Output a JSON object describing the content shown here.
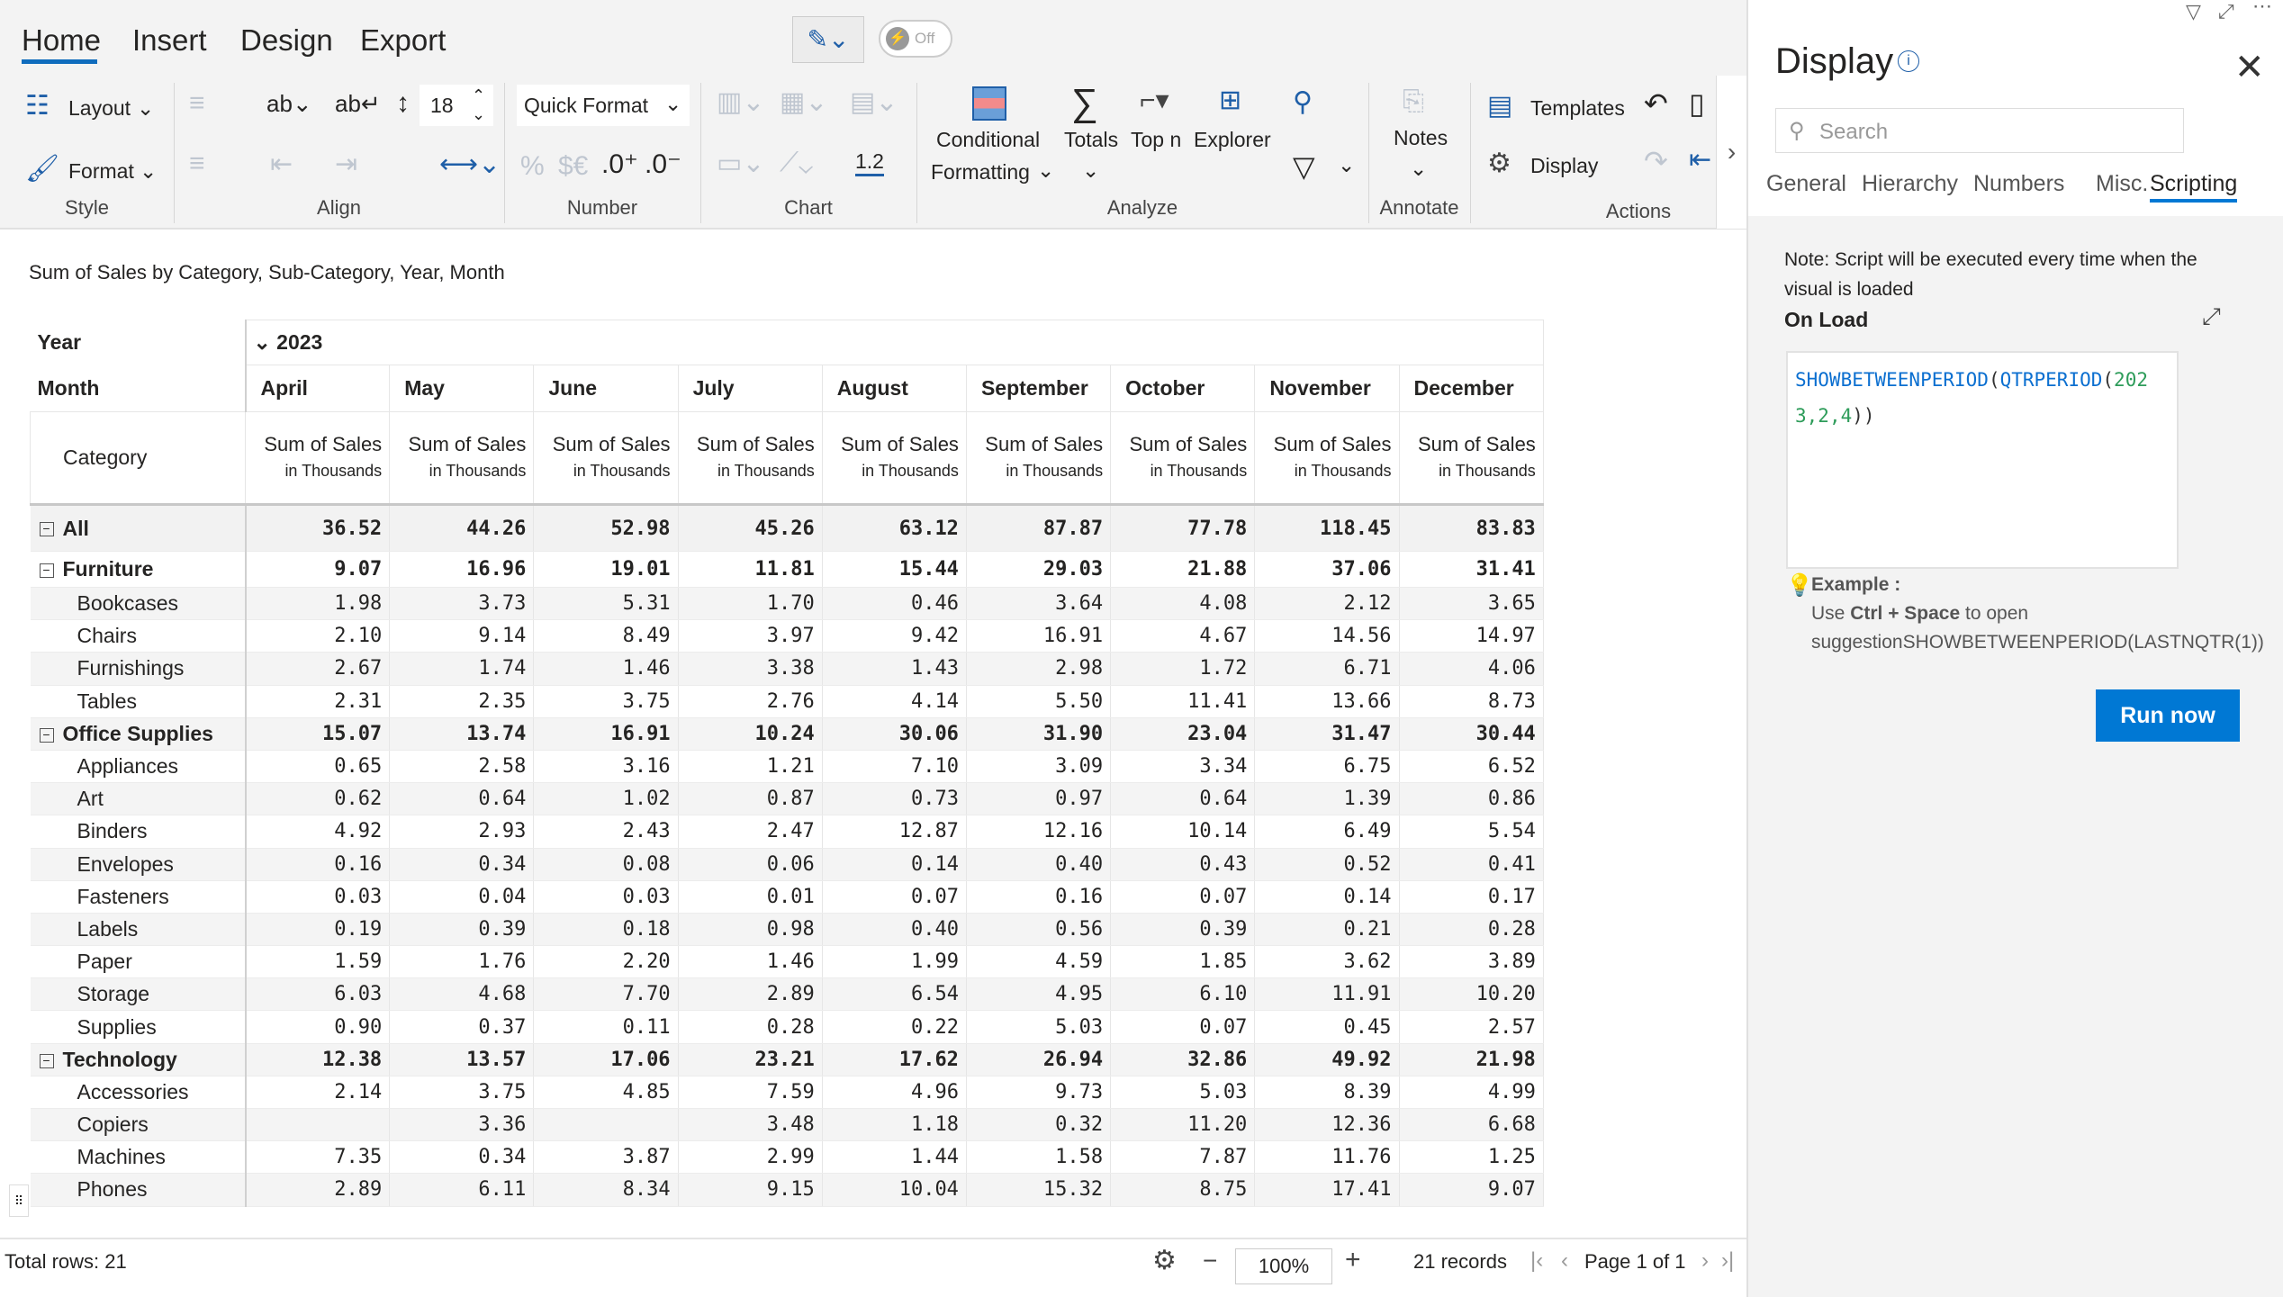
{
  "ribbon": {
    "tabs": [
      "Home",
      "Insert",
      "Design",
      "Export"
    ],
    "active_tab": "Home",
    "toggle_label": "Off",
    "style": {
      "layout": "Layout",
      "format": "Format",
      "label": "Style"
    },
    "align": {
      "font_size": "18",
      "label": "Align"
    },
    "number": {
      "quick_format": "Quick Format",
      "decimal_value": "1.2",
      "label": "Number",
      "percent": "%",
      "currency": "$€"
    },
    "chart": {
      "label": "Chart"
    },
    "analyze": {
      "conditional": "Conditional",
      "formatting": "Formatting",
      "totals": "Totals",
      "topn": "Top n",
      "explorer": "Explorer",
      "label": "Analyze"
    },
    "annotate": {
      "notes": "Notes",
      "label": "Annotate"
    },
    "actions": {
      "templates": "Templates",
      "display": "Display",
      "label": "Actions"
    }
  },
  "view_title": "Sum of Sales by Category, Sub-Category, Year, Month",
  "table": {
    "year_label": "Year",
    "year": "2023",
    "month_label": "Month",
    "category_label": "Category",
    "measure": "Sum of Sales",
    "measure_unit": "in Thousands",
    "months": [
      "April",
      "May",
      "June",
      "July",
      "August",
      "September",
      "October",
      "November",
      "December"
    ],
    "rows": [
      {
        "label": "All",
        "level": 0,
        "values": [
          "36.52",
          "44.26",
          "52.98",
          "45.26",
          "63.12",
          "87.87",
          "77.78",
          "118.45",
          "83.83"
        ]
      },
      {
        "label": "Furniture",
        "level": 1,
        "values": [
          "9.07",
          "16.96",
          "19.01",
          "11.81",
          "15.44",
          "29.03",
          "21.88",
          "37.06",
          "31.41"
        ]
      },
      {
        "label": "Bookcases",
        "level": 2,
        "values": [
          "1.98",
          "3.73",
          "5.31",
          "1.70",
          "0.46",
          "3.64",
          "4.08",
          "2.12",
          "3.65"
        ]
      },
      {
        "label": "Chairs",
        "level": 2,
        "values": [
          "2.10",
          "9.14",
          "8.49",
          "3.97",
          "9.42",
          "16.91",
          "4.67",
          "14.56",
          "14.97"
        ]
      },
      {
        "label": "Furnishings",
        "level": 2,
        "values": [
          "2.67",
          "1.74",
          "1.46",
          "3.38",
          "1.43",
          "2.98",
          "1.72",
          "6.71",
          "4.06"
        ]
      },
      {
        "label": "Tables",
        "level": 2,
        "values": [
          "2.31",
          "2.35",
          "3.75",
          "2.76",
          "4.14",
          "5.50",
          "11.41",
          "13.66",
          "8.73"
        ]
      },
      {
        "label": "Office Supplies",
        "level": 1,
        "values": [
          "15.07",
          "13.74",
          "16.91",
          "10.24",
          "30.06",
          "31.90",
          "23.04",
          "31.47",
          "30.44"
        ]
      },
      {
        "label": "Appliances",
        "level": 2,
        "values": [
          "0.65",
          "2.58",
          "3.16",
          "1.21",
          "7.10",
          "3.09",
          "3.34",
          "6.75",
          "6.52"
        ]
      },
      {
        "label": "Art",
        "level": 2,
        "values": [
          "0.62",
          "0.64",
          "1.02",
          "0.87",
          "0.73",
          "0.97",
          "0.64",
          "1.39",
          "0.86"
        ]
      },
      {
        "label": "Binders",
        "level": 2,
        "values": [
          "4.92",
          "2.93",
          "2.43",
          "2.47",
          "12.87",
          "12.16",
          "10.14",
          "6.49",
          "5.54"
        ]
      },
      {
        "label": "Envelopes",
        "level": 2,
        "values": [
          "0.16",
          "0.34",
          "0.08",
          "0.06",
          "0.14",
          "0.40",
          "0.43",
          "0.52",
          "0.41"
        ]
      },
      {
        "label": "Fasteners",
        "level": 2,
        "values": [
          "0.03",
          "0.04",
          "0.03",
          "0.01",
          "0.07",
          "0.16",
          "0.07",
          "0.14",
          "0.17"
        ]
      },
      {
        "label": "Labels",
        "level": 2,
        "values": [
          "0.19",
          "0.39",
          "0.18",
          "0.98",
          "0.40",
          "0.56",
          "0.39",
          "0.21",
          "0.28"
        ]
      },
      {
        "label": "Paper",
        "level": 2,
        "values": [
          "1.59",
          "1.76",
          "2.20",
          "1.46",
          "1.99",
          "4.59",
          "1.85",
          "3.62",
          "3.89"
        ]
      },
      {
        "label": "Storage",
        "level": 2,
        "values": [
          "6.03",
          "4.68",
          "7.70",
          "2.89",
          "6.54",
          "4.95",
          "6.10",
          "11.91",
          "10.20"
        ]
      },
      {
        "label": "Supplies",
        "level": 2,
        "values": [
          "0.90",
          "0.37",
          "0.11",
          "0.28",
          "0.22",
          "5.03",
          "0.07",
          "0.45",
          "2.57"
        ]
      },
      {
        "label": "Technology",
        "level": 1,
        "values": [
          "12.38",
          "13.57",
          "17.06",
          "23.21",
          "17.62",
          "26.94",
          "32.86",
          "49.92",
          "21.98"
        ]
      },
      {
        "label": "Accessories",
        "level": 2,
        "values": [
          "2.14",
          "3.75",
          "4.85",
          "7.59",
          "4.96",
          "9.73",
          "5.03",
          "8.39",
          "4.99"
        ]
      },
      {
        "label": "Copiers",
        "level": 2,
        "values": [
          "",
          "3.36",
          "",
          "3.48",
          "1.18",
          "0.32",
          "11.20",
          "12.36",
          "6.68"
        ]
      },
      {
        "label": "Machines",
        "level": 2,
        "values": [
          "7.35",
          "0.34",
          "3.87",
          "2.99",
          "1.44",
          "1.58",
          "7.87",
          "11.76",
          "1.25"
        ]
      },
      {
        "label": "Phones",
        "level": 2,
        "values": [
          "2.89",
          "6.11",
          "8.34",
          "9.15",
          "10.04",
          "15.32",
          "8.75",
          "17.41",
          "9.07"
        ]
      }
    ]
  },
  "footer": {
    "total_rows": "Total rows: 21",
    "zoom": "100%",
    "records": "21 records",
    "page": "Page 1 of 1"
  },
  "panel": {
    "title": "Display",
    "search_placeholder": "Search",
    "tabs": [
      "General",
      "Hierarchy",
      "Numbers",
      "Misc.",
      "Scripting"
    ],
    "active_tab": "Scripting",
    "note": "Note: Script will be executed every time when the visual is loaded",
    "on_load": "On Load",
    "code": {
      "fn1": "SHOWBETWEENPERIOD",
      "fn2": "QTRPERIOD",
      "args1": "2023,2",
      "args2": ",4",
      "close": "))"
    },
    "example_label": "Example",
    "example_text_1": "Use ",
    "example_keys": "Ctrl + Space",
    "example_text_2": " to open",
    "example_suggestion": "suggestionSHOWBETWEENPERIOD(LASTNQTR(1))",
    "run_button": "Run now"
  },
  "colors": {
    "accent": "#0078d4",
    "code_fn": "#0b6fd0",
    "code_num": "#2e9c5a"
  }
}
